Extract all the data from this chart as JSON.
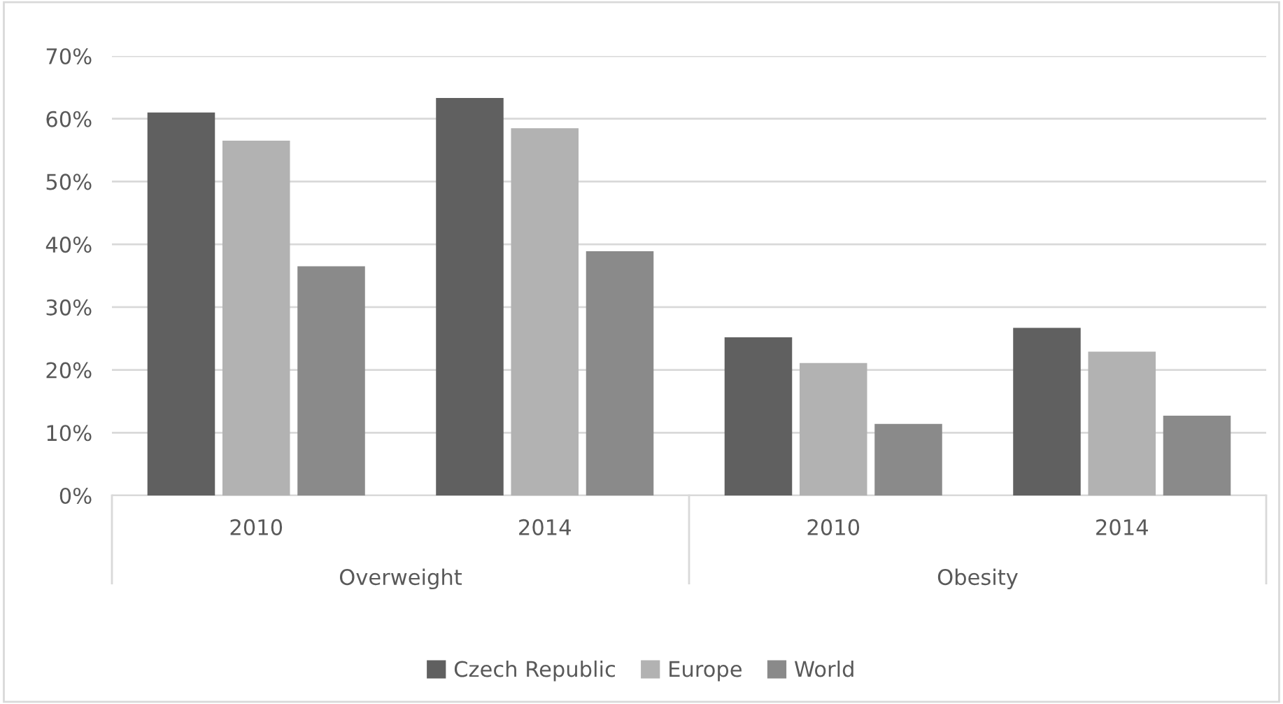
{
  "chart_data": {
    "type": "bar",
    "categories": [
      "2010",
      "2014",
      "2010",
      "2014"
    ],
    "annotations": [
      "Overweight",
      "Obesity"
    ],
    "series": [
      {
        "name": "Czech Republic",
        "color": "#606060",
        "values": [
          61.0,
          63.3,
          25.2,
          26.7
        ]
      },
      {
        "name": "Europe",
        "color": "#b2b2b2",
        "values": [
          56.5,
          58.5,
          21.1,
          22.9
        ]
      },
      {
        "name": "World",
        "color": "#8a8a8a",
        "values": [
          36.5,
          38.9,
          11.4,
          12.7
        ]
      }
    ],
    "ylim": [
      0,
      70
    ],
    "yticks": [
      {
        "value": 0,
        "label": "0%"
      },
      {
        "value": 10,
        "label": "10%"
      },
      {
        "value": 20,
        "label": "20%"
      },
      {
        "value": 30,
        "label": "30%"
      },
      {
        "value": 40,
        "label": "40%"
      },
      {
        "value": 50,
        "label": "50%"
      },
      {
        "value": 60,
        "label": "60%"
      },
      {
        "value": 70,
        "label": "70%"
      }
    ],
    "grid": "y",
    "legend": "bottom"
  }
}
